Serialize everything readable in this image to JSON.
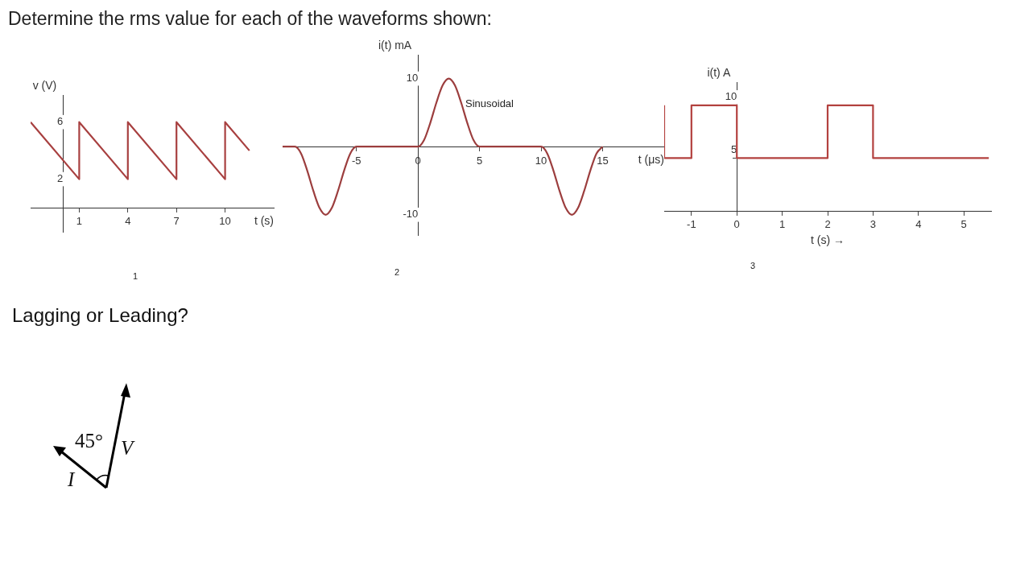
{
  "chart_data": [
    {
      "type": "line",
      "title": "Determine the rms value for each of the waveforms shown:",
      "xlabel": "t (s)",
      "ylabel": "v (V)",
      "x": [
        -2,
        1,
        1,
        4,
        4,
        7,
        7,
        10,
        10,
        11.5
      ],
      "series": [
        {
          "color": "#a84040",
          "values": [
            6,
            2,
            6,
            2,
            6,
            2,
            6,
            2,
            6,
            4
          ]
        }
      ],
      "xlim": [
        -2,
        13
      ],
      "ylim": [
        -1.7,
        7.9
      ],
      "xticks": [
        1,
        4,
        7,
        10
      ],
      "yticks": [
        2,
        6
      ],
      "annotations": [
        "1"
      ]
    },
    {
      "type": "line",
      "xlabel": "t (μs)",
      "ylabel": "i(t) mA",
      "x": [
        -11,
        -10,
        -9.5,
        -9,
        -8.5,
        -8,
        -7.5,
        -7,
        -6.5,
        -6,
        -5.5,
        -5,
        0,
        0.5,
        1,
        1.5,
        2,
        2.5,
        3,
        3.5,
        4,
        4.5,
        5,
        10,
        10.5,
        11,
        11.5,
        12,
        12.5,
        13,
        13.5,
        14,
        14.5,
        15
      ],
      "series": [
        {
          "color": "#9c3e3e",
          "values": [
            0,
            0,
            -1,
            -3.5,
            -6.5,
            -9,
            -10,
            -9,
            -6.5,
            -3.5,
            -1,
            0,
            0,
            1,
            3.5,
            6.5,
            9,
            10,
            9,
            6.5,
            3.5,
            1,
            0,
            0,
            -1,
            -3.5,
            -6.5,
            -9,
            -10,
            -9,
            -6.5,
            -3.5,
            -1,
            0
          ]
        }
      ],
      "xlim": [
        -11,
        20
      ],
      "ylim": [
        -13,
        13.5
      ],
      "xticks": [
        -5,
        0,
        5,
        10,
        15
      ],
      "yticks": [
        10,
        -10
      ],
      "annotations": [
        "Sinusoidal",
        "2"
      ]
    },
    {
      "type": "step",
      "xlabel": "t (s) →",
      "ylabel": "i(t) A",
      "x": [
        -1.6,
        -1,
        0,
        2,
        3,
        5,
        5.55
      ],
      "series": [
        {
          "color": "#b3413f",
          "values": [
            10,
            5,
            10,
            5,
            10,
            5,
            5
          ]
        }
      ],
      "xlim": [
        -1.6,
        5.6
      ],
      "ylim": [
        0,
        12.2
      ],
      "xticks": [
        -1,
        0,
        1,
        2,
        3,
        4,
        5
      ],
      "yticks": [
        5,
        10
      ],
      "annotations": [
        "3"
      ]
    },
    {
      "type": "other",
      "annotations": [
        "Lagging or Leading?",
        "45°",
        "V",
        "I"
      ]
    }
  ]
}
